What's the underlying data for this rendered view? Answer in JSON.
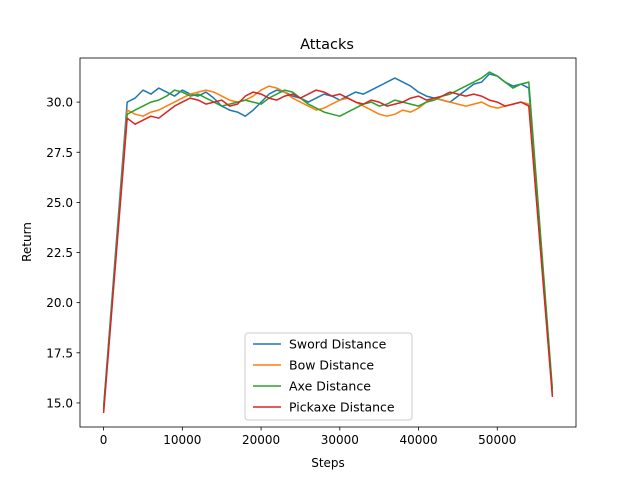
{
  "chart_data": {
    "type": "line",
    "title": "Attacks",
    "xlabel": "Steps",
    "ylabel": "Return",
    "xlim": [
      -3000,
      60000
    ],
    "ylim": [
      13.8,
      32.2
    ],
    "xticks": [
      0,
      10000,
      20000,
      30000,
      40000,
      50000
    ],
    "xtick_labels": [
      "0",
      "10000",
      "20000",
      "30000",
      "40000",
      "50000"
    ],
    "yticks": [
      15.0,
      17.5,
      20.0,
      22.5,
      25.0,
      27.5,
      30.0
    ],
    "ytick_labels": [
      "15.0",
      "17.5",
      "20.0",
      "22.5",
      "25.0",
      "27.5",
      "30.0"
    ],
    "grid": false,
    "legend_position": "lower-center",
    "series": [
      {
        "name": "Sword Distance",
        "color": "#1f77b4",
        "x": [
          0,
          3000,
          4000,
          5000,
          6000,
          7000,
          8000,
          9000,
          10000,
          11000,
          12000,
          13000,
          14000,
          15000,
          16000,
          17000,
          18000,
          19000,
          20000,
          21000,
          22000,
          23000,
          24000,
          25000,
          26000,
          27000,
          28000,
          29000,
          30000,
          31000,
          32000,
          33000,
          34000,
          35000,
          36000,
          37000,
          38000,
          39000,
          40000,
          41000,
          42000,
          43000,
          44000,
          45000,
          46000,
          47000,
          48000,
          49000,
          50000,
          51000,
          52000,
          53000,
          54000,
          57000
        ],
        "y": [
          14.8,
          30.0,
          30.2,
          30.6,
          30.4,
          30.7,
          30.5,
          30.3,
          30.6,
          30.4,
          30.3,
          30.5,
          30.2,
          29.8,
          29.6,
          29.5,
          29.3,
          29.6,
          30.0,
          30.4,
          30.6,
          30.5,
          30.3,
          30.2,
          30.0,
          30.2,
          30.4,
          30.3,
          30.1,
          30.3,
          30.5,
          30.4,
          30.6,
          30.8,
          31.0,
          31.2,
          31.0,
          30.8,
          30.5,
          30.3,
          30.2,
          30.1,
          30.0,
          30.3,
          30.6,
          30.9,
          31.0,
          31.4,
          31.3,
          31.0,
          30.8,
          30.9,
          30.7,
          15.5
        ]
      },
      {
        "name": "Bow Distance",
        "color": "#ff7f0e",
        "x": [
          0,
          3000,
          4000,
          5000,
          6000,
          7000,
          8000,
          9000,
          10000,
          11000,
          12000,
          13000,
          14000,
          15000,
          16000,
          17000,
          18000,
          19000,
          20000,
          21000,
          22000,
          23000,
          24000,
          25000,
          26000,
          27000,
          28000,
          29000,
          30000,
          31000,
          32000,
          33000,
          34000,
          35000,
          36000,
          37000,
          38000,
          39000,
          40000,
          41000,
          42000,
          43000,
          44000,
          45000,
          46000,
          47000,
          48000,
          49000,
          50000,
          51000,
          52000,
          53000,
          54000,
          57000
        ],
        "y": [
          14.6,
          29.6,
          29.4,
          29.3,
          29.5,
          29.6,
          29.8,
          30.0,
          30.2,
          30.4,
          30.5,
          30.6,
          30.5,
          30.3,
          30.1,
          30.0,
          30.1,
          30.3,
          30.6,
          30.8,
          30.7,
          30.5,
          30.2,
          30.0,
          29.8,
          29.6,
          29.7,
          29.9,
          30.1,
          30.2,
          30.0,
          29.8,
          29.6,
          29.4,
          29.3,
          29.4,
          29.6,
          29.5,
          29.7,
          30.0,
          30.2,
          30.1,
          30.0,
          29.9,
          29.8,
          29.9,
          30.0,
          29.8,
          29.7,
          29.8,
          29.9,
          30.0,
          29.9,
          15.4
        ]
      },
      {
        "name": "Axe Distance",
        "color": "#2ca02c",
        "x": [
          0,
          3000,
          4000,
          5000,
          6000,
          7000,
          8000,
          9000,
          10000,
          11000,
          12000,
          13000,
          14000,
          15000,
          16000,
          17000,
          18000,
          19000,
          20000,
          21000,
          22000,
          23000,
          24000,
          25000,
          26000,
          27000,
          28000,
          29000,
          30000,
          31000,
          32000,
          33000,
          34000,
          35000,
          36000,
          37000,
          38000,
          39000,
          40000,
          41000,
          42000,
          43000,
          44000,
          45000,
          46000,
          47000,
          48000,
          49000,
          50000,
          51000,
          52000,
          53000,
          54000,
          57000
        ],
        "y": [
          14.7,
          29.4,
          29.6,
          29.8,
          30.0,
          30.1,
          30.3,
          30.6,
          30.5,
          30.3,
          30.4,
          30.2,
          30.0,
          29.8,
          29.9,
          30.0,
          30.1,
          30.0,
          29.9,
          30.2,
          30.4,
          30.6,
          30.5,
          30.2,
          29.9,
          29.7,
          29.5,
          29.4,
          29.3,
          29.5,
          29.7,
          29.9,
          30.0,
          29.8,
          29.9,
          30.1,
          30.0,
          29.9,
          29.8,
          30.0,
          30.1,
          30.3,
          30.4,
          30.6,
          30.8,
          31.0,
          31.2,
          31.5,
          31.3,
          31.0,
          30.7,
          30.9,
          31.0,
          15.7
        ]
      },
      {
        "name": "Pickaxe Distance",
        "color": "#d62728",
        "x": [
          0,
          3000,
          4000,
          5000,
          6000,
          7000,
          8000,
          9000,
          10000,
          11000,
          12000,
          13000,
          14000,
          15000,
          16000,
          17000,
          18000,
          19000,
          20000,
          21000,
          22000,
          23000,
          24000,
          25000,
          26000,
          27000,
          28000,
          29000,
          30000,
          31000,
          32000,
          33000,
          34000,
          35000,
          36000,
          37000,
          38000,
          39000,
          40000,
          41000,
          42000,
          43000,
          44000,
          45000,
          46000,
          47000,
          48000,
          49000,
          50000,
          51000,
          52000,
          53000,
          54000,
          57000
        ],
        "y": [
          14.5,
          29.2,
          28.9,
          29.1,
          29.3,
          29.2,
          29.5,
          29.8,
          30.0,
          30.2,
          30.1,
          29.9,
          30.0,
          30.1,
          29.8,
          29.9,
          30.3,
          30.5,
          30.4,
          30.2,
          30.1,
          30.3,
          30.4,
          30.2,
          30.4,
          30.6,
          30.5,
          30.3,
          30.4,
          30.2,
          30.0,
          29.9,
          30.1,
          30.0,
          29.8,
          29.9,
          30.0,
          30.2,
          30.3,
          30.1,
          30.2,
          30.3,
          30.5,
          30.4,
          30.3,
          30.4,
          30.3,
          30.1,
          30.0,
          29.8,
          29.9,
          30.0,
          29.8,
          15.3
        ]
      }
    ]
  }
}
